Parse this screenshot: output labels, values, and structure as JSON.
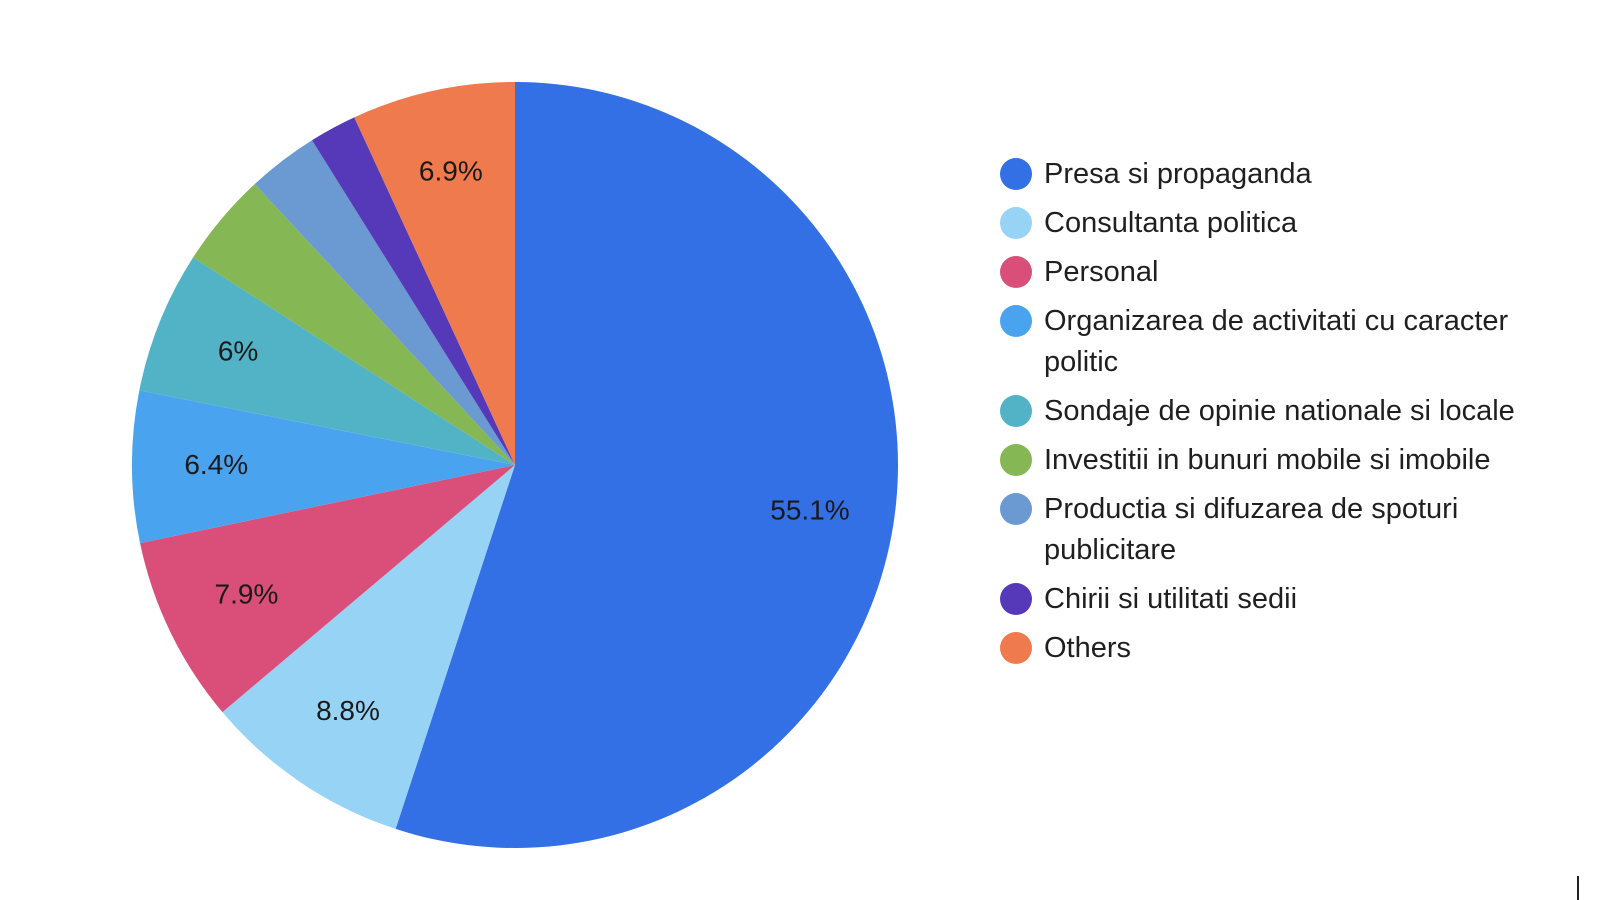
{
  "chart_data": {
    "type": "pie",
    "start_angle_deg": 0,
    "direction": "clockwise",
    "legend_position": "right",
    "title": "",
    "slices": [
      {
        "name": "Presa si propaganda",
        "value": 55.1,
        "label": "55.1%",
        "color": "#3370E6"
      },
      {
        "name": "Consultanta politica",
        "value": 8.8,
        "label": "8.8%",
        "color": "#97D3F5"
      },
      {
        "name": "Personal",
        "value": 7.9,
        "label": "7.9%",
        "color": "#D94F7A"
      },
      {
        "name": "Organizarea de activitati cu caracter politic",
        "value": 6.4,
        "label": "6.4%",
        "color": "#4AA3EE"
      },
      {
        "name": "Sondaje de opinie nationale si locale",
        "value": 6.0,
        "label": "6%",
        "color": "#53B3C6"
      },
      {
        "name": "Investitii in bunuri mobile si imobile",
        "value": 4.0,
        "label": "",
        "color": "#85B755"
      },
      {
        "name": "Productia si difuzarea de spoturi publicitare",
        "value": 3.0,
        "label": "",
        "color": "#6A9AD1"
      },
      {
        "name": "Chirii si utilitati sedii",
        "value": 2.0,
        "label": "",
        "color": "#5539B8"
      },
      {
        "name": "Others",
        "value": 6.9,
        "label": "6.9%",
        "color": "#EF7A4E"
      }
    ]
  }
}
